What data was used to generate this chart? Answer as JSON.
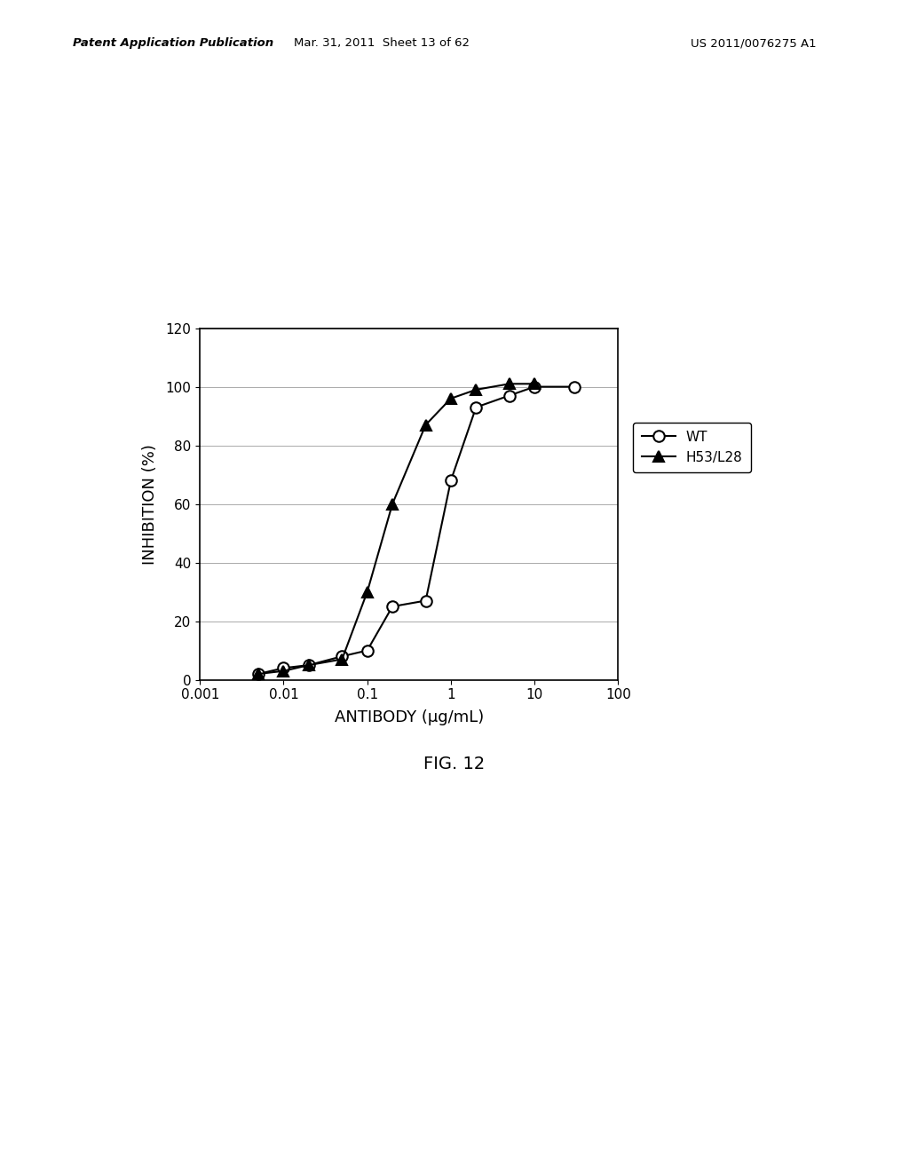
{
  "wt_x": [
    0.005,
    0.01,
    0.02,
    0.05,
    0.1,
    0.2,
    0.5,
    1.0,
    2.0,
    5.0,
    10.0,
    30.0
  ],
  "wt_y": [
    2,
    4,
    5,
    8,
    10,
    25,
    27,
    68,
    93,
    97,
    100,
    100
  ],
  "h53_x": [
    0.005,
    0.01,
    0.02,
    0.05,
    0.1,
    0.2,
    0.5,
    1.0,
    2.0,
    5.0,
    10.0
  ],
  "h53_y": [
    2,
    3,
    5,
    7,
    30,
    60,
    87,
    96,
    99,
    101,
    101
  ],
  "xlabel": "ANTIBODY (μg/mL)",
  "ylabel": "INHIBITION (%)",
  "ylim": [
    0,
    120
  ],
  "yticks": [
    0,
    20,
    40,
    60,
    80,
    100,
    120
  ],
  "xtick_vals": [
    0.001,
    0.01,
    0.1,
    1,
    10,
    100
  ],
  "xtick_labels": [
    "0.001",
    "0.01",
    "0.1",
    "1",
    "10",
    "100"
  ],
  "legend_wt": "WT",
  "legend_h53": "H53/L28",
  "line_color": "#000000",
  "bg_color": "#ffffff",
  "fig_caption": "FIG. 12",
  "header_left": "Patent Application Publication",
  "header_mid": "Mar. 31, 2011  Sheet 13 of 62",
  "header_right": "US 2011/0076275 A1"
}
